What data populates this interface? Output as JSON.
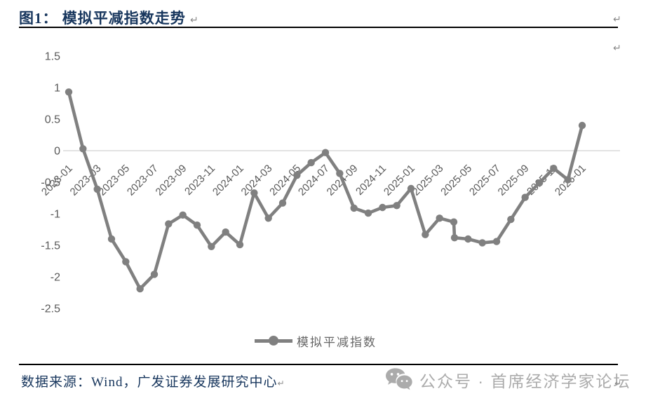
{
  "page": {
    "title": "图1： 模拟平减指数走势",
    "return_mark": "↵"
  },
  "legend": {
    "label": "模拟平减指数"
  },
  "footer": {
    "source_text": "数据来源：Wind，广发证券发展研究中心"
  },
  "watermark": {
    "icon": "wechat-icon",
    "text": "公众号 · 首席经济学家论坛"
  },
  "chart_data": {
    "type": "line",
    "title": "图1： 模拟平减指数走势",
    "series_name": "模拟平减指数",
    "x": [
      "2023-01",
      "2023-02",
      "2023-03",
      "2023-04",
      "2023-05",
      "2023-06",
      "2023-07",
      "2023-08",
      "2023-09",
      "2023-10",
      "2023-11",
      "2023-12",
      "2024-01",
      "2024-02",
      "2024-03",
      "2024-04",
      "2024-05",
      "2024-06",
      "2024-07",
      "2024-08",
      "2024-09",
      "2024-10",
      "2024-11",
      "2024-12",
      "2025-01",
      "2025-02",
      "2025-03",
      "2025-04",
      "2025-05",
      "2025-06",
      "2025-07",
      "2025-08",
      "2025-09",
      "2025-10",
      "2025-11",
      "2025-12",
      "2026-01"
    ],
    "values": [
      0.93,
      0.03,
      -0.61,
      -1.4,
      -1.76,
      -2.19,
      -1.96,
      -1.16,
      -1.02,
      -1.18,
      -1.52,
      -1.29,
      -1.49,
      -0.67,
      -1.07,
      -0.83,
      -0.39,
      -0.19,
      -0.03,
      -0.36,
      -0.91,
      -0.99,
      -0.9,
      -0.87,
      -0.6,
      -1.33,
      -1.07,
      -1.13,
      -1.4,
      -1.46,
      -1.44,
      -1.09,
      -0.74,
      -0.51,
      -0.28,
      -0.46,
      0.4
    ],
    "extra_marker": {
      "after_month": "2025-04",
      "value": -1.38,
      "note": "second marker drawn directly below the 2025-04 point"
    },
    "x_tick_labels": [
      "2023-01",
      "2023-03",
      "2023-05",
      "2023-07",
      "2023-09",
      "2023-11",
      "2024-01",
      "2024-03",
      "2024-05",
      "2024-07",
      "2024-09",
      "2024-11",
      "2025-01",
      "2025-03",
      "2025-05",
      "2025-07",
      "2025-09",
      "2025-11",
      "2026-01"
    ],
    "y_ticks": [
      "1.5",
      "1",
      "0.5",
      "0",
      "-0.5",
      "-1",
      "-1.5",
      "-2",
      "-2.5"
    ],
    "ylim": [
      -2.5,
      1.5
    ],
    "line_color": "#808080",
    "marker_color": "#808080",
    "axis_text_color": "#595959",
    "zero_gridline_color": "#D9D9D9",
    "grid": "zero line only",
    "legend_position": "bottom center",
    "x_label_rotation": 45
  }
}
